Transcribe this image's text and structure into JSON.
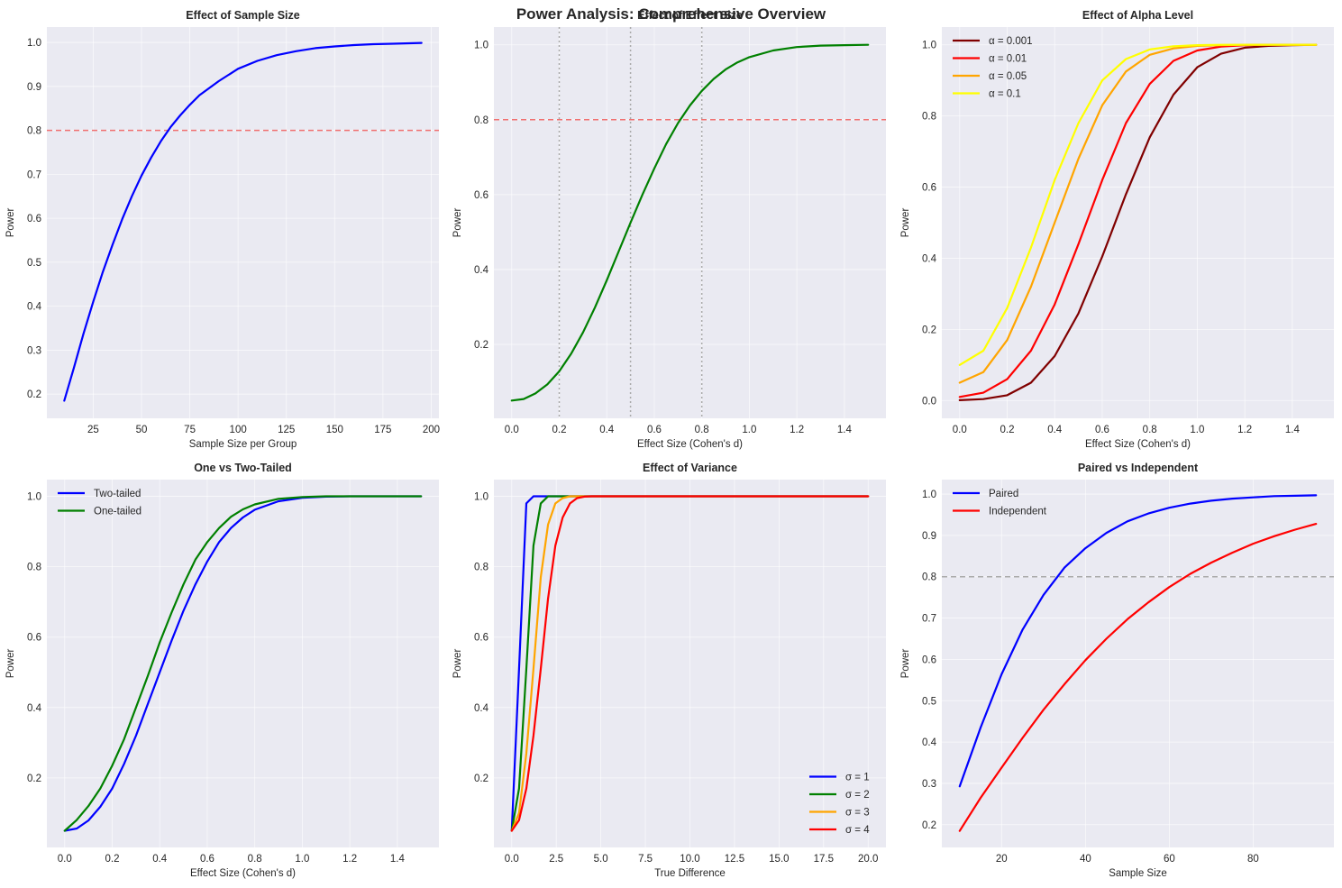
{
  "suptitle": "Power Analysis: Comprehensive Overview",
  "chart_data": [
    {
      "id": "p1",
      "type": "line",
      "title": "Effect of Sample Size",
      "xlabel": "Sample Size per Group",
      "ylabel": "Power",
      "xlim": [
        1,
        204
      ],
      "ylim": [
        0.145,
        1.035
      ],
      "xticks": [
        25,
        50,
        75,
        100,
        125,
        150,
        175,
        200
      ],
      "xticklabels": [
        "25",
        "50",
        "75",
        "100",
        "125",
        "150",
        "175",
        "200"
      ],
      "yticks": [
        0.2,
        0.3,
        0.4,
        0.5,
        0.6,
        0.7,
        0.8,
        0.9,
        1.0
      ],
      "yticklabels": [
        "0.2",
        "0.3",
        "0.4",
        "0.5",
        "0.6",
        "0.7",
        "0.8",
        "0.9",
        "1.0"
      ],
      "grid": true,
      "hlines": [
        {
          "y": 0.8,
          "color": "#f07070",
          "style": "dashed"
        }
      ],
      "vlines": [],
      "legend": null,
      "series": [
        {
          "name": "power",
          "color": "#0000ff",
          "x": [
            10,
            15,
            20,
            25,
            30,
            35,
            40,
            45,
            50,
            55,
            60,
            65,
            70,
            75,
            80,
            90,
            100,
            110,
            120,
            130,
            140,
            150,
            160,
            170,
            180,
            195
          ],
          "y": [
            0.185,
            0.26,
            0.338,
            0.41,
            0.478,
            0.54,
            0.598,
            0.65,
            0.697,
            0.738,
            0.775,
            0.807,
            0.834,
            0.858,
            0.88,
            0.912,
            0.94,
            0.958,
            0.971,
            0.98,
            0.987,
            0.991,
            0.994,
            0.996,
            0.997,
            0.999
          ]
        }
      ]
    },
    {
      "id": "p2",
      "type": "line",
      "title": "Effect of Effect Size",
      "xlabel": "Effect Size (Cohen's d)",
      "ylabel": "Power",
      "xlim": [
        -0.075,
        1.575
      ],
      "ylim": [
        0.0025,
        1.0475
      ],
      "xticks": [
        0.0,
        0.2,
        0.4,
        0.6,
        0.8,
        1.0,
        1.2,
        1.4
      ],
      "xticklabels": [
        "0.0",
        "0.2",
        "0.4",
        "0.6",
        "0.8",
        "1.0",
        "1.2",
        "1.4"
      ],
      "yticks": [
        0.2,
        0.4,
        0.6,
        0.8,
        1.0
      ],
      "yticklabels": [
        "0.2",
        "0.4",
        "0.6",
        "0.8",
        "1.0"
      ],
      "grid": true,
      "hlines": [
        {
          "y": 0.8,
          "color": "#f07070",
          "style": "dashed"
        }
      ],
      "vlines": [
        {
          "x": 0.2,
          "color": "#aaaaaa",
          "style": "dotted"
        },
        {
          "x": 0.5,
          "color": "#aaaaaa",
          "style": "dotted"
        },
        {
          "x": 0.8,
          "color": "#aaaaaa",
          "style": "dotted"
        }
      ],
      "legend": null,
      "series": [
        {
          "name": "power",
          "color": "#008000",
          "x": [
            0.0,
            0.05,
            0.1,
            0.15,
            0.2,
            0.25,
            0.3,
            0.35,
            0.4,
            0.45,
            0.5,
            0.55,
            0.6,
            0.65,
            0.7,
            0.75,
            0.8,
            0.85,
            0.9,
            0.95,
            1.0,
            1.1,
            1.2,
            1.3,
            1.4,
            1.5
          ],
          "y": [
            0.05,
            0.054,
            0.069,
            0.093,
            0.128,
            0.175,
            0.232,
            0.298,
            0.371,
            0.448,
            0.525,
            0.6,
            0.67,
            0.735,
            0.791,
            0.838,
            0.877,
            0.909,
            0.934,
            0.953,
            0.967,
            0.985,
            0.994,
            0.998,
            0.999,
            1.0
          ]
        }
      ]
    },
    {
      "id": "p3",
      "type": "line",
      "title": "Effect of Alpha Level",
      "xlabel": "Effect Size (Cohen's d)",
      "ylabel": "Power",
      "xlim": [
        -0.075,
        1.575
      ],
      "ylim": [
        -0.05,
        1.05
      ],
      "xticks": [
        0.0,
        0.2,
        0.4,
        0.6,
        0.8,
        1.0,
        1.2,
        1.4
      ],
      "xticklabels": [
        "0.0",
        "0.2",
        "0.4",
        "0.6",
        "0.8",
        "1.0",
        "1.2",
        "1.4"
      ],
      "yticks": [
        0.0,
        0.2,
        0.4,
        0.6,
        0.8,
        1.0
      ],
      "yticklabels": [
        "0.0",
        "0.2",
        "0.4",
        "0.6",
        "0.8",
        "1.0"
      ],
      "grid": true,
      "hlines": [],
      "vlines": [],
      "legend": "top-left",
      "series": [
        {
          "name": "α = 0.001",
          "color": "#800000",
          "x": [
            0.0,
            0.1,
            0.2,
            0.3,
            0.4,
            0.5,
            0.6,
            0.7,
            0.8,
            0.9,
            1.0,
            1.1,
            1.2,
            1.3,
            1.4,
            1.5
          ],
          "y": [
            0.001,
            0.004,
            0.015,
            0.05,
            0.125,
            0.245,
            0.405,
            0.58,
            0.74,
            0.86,
            0.937,
            0.975,
            0.992,
            0.997,
            0.999,
            1.0
          ]
        },
        {
          "name": "α = 0.01",
          "color": "#ff0000",
          "x": [
            0.0,
            0.1,
            0.2,
            0.3,
            0.4,
            0.5,
            0.6,
            0.7,
            0.8,
            0.9,
            1.0,
            1.1,
            1.2,
            1.3,
            1.4,
            1.5
          ],
          "y": [
            0.01,
            0.022,
            0.06,
            0.14,
            0.27,
            0.44,
            0.62,
            0.78,
            0.89,
            0.955,
            0.984,
            0.995,
            0.999,
            1.0,
            1.0,
            1.0
          ]
        },
        {
          "name": "α = 0.05",
          "color": "#ffa500",
          "x": [
            0.0,
            0.1,
            0.2,
            0.3,
            0.4,
            0.5,
            0.6,
            0.7,
            0.8,
            0.9,
            1.0,
            1.1,
            1.2,
            1.3,
            1.4,
            1.5
          ],
          "y": [
            0.05,
            0.08,
            0.17,
            0.32,
            0.5,
            0.68,
            0.83,
            0.925,
            0.972,
            0.99,
            0.997,
            0.999,
            1.0,
            1.0,
            1.0,
            1.0
          ]
        },
        {
          "name": "α = 0.1",
          "color": "#ffff00",
          "x": [
            0.0,
            0.1,
            0.2,
            0.3,
            0.4,
            0.5,
            0.6,
            0.7,
            0.8,
            0.9,
            1.0,
            1.1,
            1.2,
            1.3,
            1.4,
            1.5
          ],
          "y": [
            0.1,
            0.14,
            0.26,
            0.43,
            0.62,
            0.78,
            0.9,
            0.96,
            0.987,
            0.996,
            0.999,
            1.0,
            1.0,
            1.0,
            1.0,
            1.0
          ]
        }
      ]
    },
    {
      "id": "p4",
      "type": "line",
      "title": "One vs Two-Tailed",
      "xlabel": "Effect Size (Cohen's d)",
      "ylabel": "Power",
      "xlim": [
        -0.075,
        1.575
      ],
      "ylim": [
        0.0025,
        1.0475
      ],
      "xticks": [
        0.0,
        0.2,
        0.4,
        0.6,
        0.8,
        1.0,
        1.2,
        1.4
      ],
      "xticklabels": [
        "0.0",
        "0.2",
        "0.4",
        "0.6",
        "0.8",
        "1.0",
        "1.2",
        "1.4"
      ],
      "yticks": [
        0.2,
        0.4,
        0.6,
        0.8,
        1.0
      ],
      "yticklabels": [
        "0.2",
        "0.4",
        "0.6",
        "0.8",
        "1.0"
      ],
      "grid": true,
      "hlines": [],
      "vlines": [],
      "legend": "top-left",
      "series": [
        {
          "name": "Two-tailed",
          "color": "#0000ff",
          "x": [
            0.0,
            0.05,
            0.1,
            0.15,
            0.2,
            0.25,
            0.3,
            0.35,
            0.4,
            0.45,
            0.5,
            0.55,
            0.6,
            0.65,
            0.7,
            0.75,
            0.8,
            0.9,
            1.0,
            1.1,
            1.2,
            1.3,
            1.4,
            1.5
          ],
          "y": [
            0.05,
            0.056,
            0.079,
            0.118,
            0.17,
            0.24,
            0.32,
            0.41,
            0.5,
            0.59,
            0.675,
            0.75,
            0.815,
            0.87,
            0.91,
            0.94,
            0.962,
            0.986,
            0.996,
            0.999,
            1.0,
            1.0,
            1.0,
            1.0
          ]
        },
        {
          "name": "One-tailed",
          "color": "#008000",
          "x": [
            0.0,
            0.05,
            0.1,
            0.15,
            0.2,
            0.25,
            0.3,
            0.35,
            0.4,
            0.45,
            0.5,
            0.55,
            0.6,
            0.65,
            0.7,
            0.75,
            0.8,
            0.9,
            1.0,
            1.1,
            1.2,
            1.3,
            1.4,
            1.5
          ],
          "y": [
            0.05,
            0.08,
            0.12,
            0.17,
            0.235,
            0.31,
            0.4,
            0.49,
            0.585,
            0.67,
            0.75,
            0.82,
            0.87,
            0.91,
            0.942,
            0.963,
            0.977,
            0.993,
            0.998,
            1.0,
            1.0,
            1.0,
            1.0,
            1.0
          ]
        }
      ]
    },
    {
      "id": "p5",
      "type": "line",
      "title": "Effect of Variance",
      "xlabel": "True Difference",
      "ylabel": "Power",
      "xlim": [
        -1.0,
        21.0
      ],
      "ylim": [
        0.0025,
        1.0475
      ],
      "xticks": [
        0.0,
        2.5,
        5.0,
        7.5,
        10.0,
        12.5,
        15.0,
        17.5,
        20.0
      ],
      "xticklabels": [
        "0.0",
        "2.5",
        "5.0",
        "7.5",
        "10.0",
        "12.5",
        "15.0",
        "17.5",
        "20.0"
      ],
      "yticks": [
        0.2,
        0.4,
        0.6,
        0.8,
        1.0
      ],
      "yticklabels": [
        "0.2",
        "0.4",
        "0.6",
        "0.8",
        "1.0"
      ],
      "grid": true,
      "hlines": [],
      "vlines": [],
      "legend": "bottom-right",
      "series": [
        {
          "name": "σ = 1",
          "color": "#0000ff",
          "x": [
            0.0,
            0.41,
            0.82,
            1.22,
            1.63,
            2.04,
            20.0
          ],
          "y": [
            0.05,
            0.51,
            0.98,
            1.0,
            1.0,
            1.0,
            1.0
          ]
        },
        {
          "name": "σ = 2",
          "color": "#008000",
          "x": [
            0.0,
            0.41,
            0.82,
            1.22,
            1.63,
            2.04,
            2.45,
            20.0
          ],
          "y": [
            0.05,
            0.17,
            0.51,
            0.86,
            0.98,
            1.0,
            1.0,
            1.0
          ]
        },
        {
          "name": "σ = 3",
          "color": "#ffa500",
          "x": [
            0.0,
            0.41,
            0.82,
            1.22,
            1.63,
            2.04,
            2.45,
            2.86,
            3.27,
            3.67,
            20.0
          ],
          "y": [
            0.05,
            0.1,
            0.27,
            0.51,
            0.77,
            0.92,
            0.98,
            0.995,
            1.0,
            1.0,
            1.0
          ]
        },
        {
          "name": "σ = 4",
          "color": "#ff0000",
          "x": [
            0.0,
            0.41,
            0.82,
            1.22,
            1.63,
            2.04,
            2.45,
            2.86,
            3.27,
            3.67,
            4.08,
            4.49,
            20.0
          ],
          "y": [
            0.05,
            0.08,
            0.17,
            0.32,
            0.51,
            0.71,
            0.86,
            0.94,
            0.98,
            0.995,
            0.999,
            1.0,
            1.0
          ]
        }
      ]
    },
    {
      "id": "p6",
      "type": "line",
      "title": "Paired vs Independent",
      "xlabel": "Sample Size",
      "ylabel": "Power",
      "xlim": [
        5.75,
        99.25
      ],
      "ylim": [
        0.145,
        1.035
      ],
      "xticks": [
        20,
        40,
        60,
        80
      ],
      "xticklabels": [
        "20",
        "40",
        "60",
        "80"
      ],
      "yticks": [
        0.2,
        0.3,
        0.4,
        0.5,
        0.6,
        0.7,
        0.8,
        0.9,
        1.0
      ],
      "yticklabels": [
        "0.2",
        "0.3",
        "0.4",
        "0.5",
        "0.6",
        "0.7",
        "0.8",
        "0.9",
        "1.0"
      ],
      "grid": true,
      "hlines": [
        {
          "y": 0.8,
          "color": "#aaaaaa",
          "style": "dashed"
        }
      ],
      "vlines": [],
      "legend": "top-left",
      "series": [
        {
          "name": "Paired",
          "color": "#0000ff",
          "x": [
            10,
            15,
            20,
            25,
            30,
            35,
            40,
            45,
            50,
            55,
            60,
            65,
            70,
            75,
            80,
            85,
            90,
            95
          ],
          "y": [
            0.293,
            0.435,
            0.564,
            0.672,
            0.756,
            0.822,
            0.869,
            0.906,
            0.934,
            0.953,
            0.967,
            0.977,
            0.984,
            0.989,
            0.992,
            0.995,
            0.996,
            0.997
          ]
        },
        {
          "name": "Independent",
          "color": "#ff0000",
          "x": [
            10,
            15,
            20,
            25,
            30,
            35,
            40,
            45,
            50,
            55,
            60,
            65,
            70,
            75,
            80,
            85,
            90,
            95
          ],
          "y": [
            0.185,
            0.265,
            0.338,
            0.41,
            0.478,
            0.54,
            0.598,
            0.65,
            0.697,
            0.738,
            0.775,
            0.807,
            0.834,
            0.858,
            0.88,
            0.898,
            0.914,
            0.928
          ]
        }
      ]
    }
  ]
}
